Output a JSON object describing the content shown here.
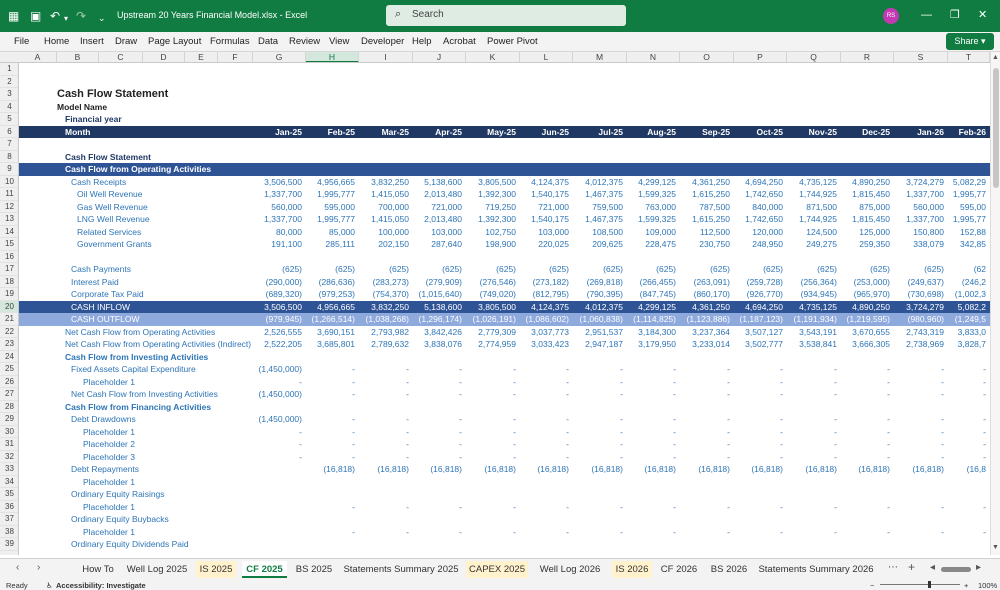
{
  "window": {
    "title": "Upstream 20 Years Financial Model.xlsx  -  Excel",
    "search_placeholder": "Search",
    "avatar_initials": "RS",
    "accent_color": "#107c41"
  },
  "menu": [
    "File",
    "Home",
    "Insert",
    "Draw",
    "Page Layout",
    "Formulas",
    "Data",
    "Review",
    "View",
    "Developer",
    "Help",
    "Acrobat",
    "Power Pivot"
  ],
  "share_label": "Share",
  "columns": [
    "A",
    "B",
    "C",
    "D",
    "E",
    "F",
    "G",
    "H",
    "I",
    "J",
    "K",
    "L",
    "M",
    "N",
    "O",
    "P",
    "Q",
    "R",
    "S",
    "T"
  ],
  "selected_column": "H",
  "sheet": {
    "title": "Cash Flow Statement",
    "subtitle": "Model Name",
    "financial_year_label": "Financial year",
    "month_label": "Month",
    "months": [
      "Jan-25",
      "Feb-25",
      "Mar-25",
      "Apr-25",
      "May-25",
      "Jun-25",
      "Jul-25",
      "Aug-25",
      "Sep-25",
      "Oct-25",
      "Nov-25",
      "Dec-25",
      "Jan-26",
      "Feb-26"
    ],
    "section_label": "Cash Flow Statement",
    "rows": [
      {
        "r": "10",
        "label": "Cash Receipts",
        "indent": 1,
        "style": "blue",
        "vals": [
          "3,506,500",
          "4,956,665",
          "3,832,250",
          "5,138,600",
          "3,805,500",
          "4,124,375",
          "4,012,375",
          "4,299,125",
          "4,361,250",
          "4,694,250",
          "4,735,125",
          "4,890,250",
          "3,724,279",
          "5,082,29"
        ]
      },
      {
        "r": "11",
        "label": "Oil Well Revenue",
        "indent": 2,
        "style": "blue",
        "vals": [
          "1,337,700",
          "1,995,777",
          "1,415,050",
          "2,013,480",
          "1,392,300",
          "1,540,175",
          "1,467,375",
          "1,599,325",
          "1,615,250",
          "1,742,650",
          "1,744,925",
          "1,815,450",
          "1,337,700",
          "1,995,77"
        ]
      },
      {
        "r": "12",
        "label": "Gas Well Revenue",
        "indent": 2,
        "style": "blue",
        "vals": [
          "560,000",
          "595,000",
          "700,000",
          "721,000",
          "719,250",
          "721,000",
          "759,500",
          "763,000",
          "787,500",
          "840,000",
          "871,500",
          "875,000",
          "560,000",
          "595,00"
        ]
      },
      {
        "r": "13",
        "label": "LNG Well Revenue",
        "indent": 2,
        "style": "blue",
        "vals": [
          "1,337,700",
          "1,995,777",
          "1,415,050",
          "2,013,480",
          "1,392,300",
          "1,540,175",
          "1,467,375",
          "1,599,325",
          "1,615,250",
          "1,742,650",
          "1,744,925",
          "1,815,450",
          "1,337,700",
          "1,995,77"
        ]
      },
      {
        "r": "14",
        "label": "Related Services",
        "indent": 2,
        "style": "blue",
        "vals": [
          "80,000",
          "85,000",
          "100,000",
          "103,000",
          "102,750",
          "103,000",
          "108,500",
          "109,000",
          "112,500",
          "120,000",
          "124,500",
          "125,000",
          "150,800",
          "152,88"
        ]
      },
      {
        "r": "15",
        "label": "Government Grants",
        "indent": 2,
        "style": "blue",
        "vals": [
          "191,100",
          "285,111",
          "202,150",
          "287,640",
          "198,900",
          "220,025",
          "209,625",
          "228,475",
          "230,750",
          "248,950",
          "249,275",
          "259,350",
          "338,079",
          "342,85"
        ]
      },
      {
        "r": "16",
        "label": "",
        "indent": 0,
        "style": "",
        "vals": []
      },
      {
        "r": "17",
        "label": "Cash Payments",
        "indent": 1,
        "style": "blue",
        "vals": [
          "(625)",
          "(625)",
          "(625)",
          "(625)",
          "(625)",
          "(625)",
          "(625)",
          "(625)",
          "(625)",
          "(625)",
          "(625)",
          "(625)",
          "(625)",
          "(62"
        ]
      },
      {
        "r": "18",
        "label": "Interest Paid",
        "indent": 1,
        "style": "blue",
        "vals": [
          "(290,000)",
          "(286,636)",
          "(283,273)",
          "(279,909)",
          "(276,546)",
          "(273,182)",
          "(269,818)",
          "(266,455)",
          "(263,091)",
          "(259,728)",
          "(256,364)",
          "(253,000)",
          "(249,637)",
          "(246,2"
        ]
      },
      {
        "r": "19",
        "label": "Corporate Tax Paid",
        "indent": 1,
        "style": "blue",
        "vals": [
          "(689,320)",
          "(979,253)",
          "(754,370)",
          "(1,015,640)",
          "(749,020)",
          "(812,795)",
          "(790,395)",
          "(847,745)",
          "(860,170)",
          "(926,770)",
          "(934,945)",
          "(965,970)",
          "(730,698)",
          "(1,002,3"
        ]
      },
      {
        "r": "20",
        "label": "CASH INFLOW",
        "indent": 1,
        "style": "dark",
        "vals": [
          "3,506,500",
          "4,956,665",
          "3,832,250",
          "5,138,600",
          "3,805,500",
          "4,124,375",
          "4,012,375",
          "4,299,125",
          "4,361,250",
          "4,694,250",
          "4,735,125",
          "4,890,250",
          "3,724,279",
          "5,082,2"
        ]
      },
      {
        "r": "21",
        "label": "CASH OUTFLOW",
        "indent": 1,
        "style": "light",
        "vals": [
          "(979,945)",
          "(1,266,514)",
          "(1,038,268)",
          "(1,296,174)",
          "(1,026,191)",
          "(1,086,602)",
          "(1,060,838)",
          "(1,114,825)",
          "(1,123,886)",
          "(1,187,123)",
          "(1,191,934)",
          "(1,219,595)",
          "(980,960)",
          "(1,249,5"
        ]
      },
      {
        "r": "22",
        "label": "Net Cash Flow from Operating Activities",
        "indent": 0,
        "style": "blue",
        "vals": [
          "2,526,555",
          "3,690,151",
          "2,793,982",
          "3,842,426",
          "2,779,309",
          "3,037,773",
          "2,951,537",
          "3,184,300",
          "3,237,364",
          "3,507,127",
          "3,543,191",
          "3,670,655",
          "2,743,319",
          "3,833,0"
        ]
      },
      {
        "r": "23",
        "label": "Net Cash Flow from Operating Activities (Indirect)",
        "indent": 0,
        "style": "blue",
        "vals": [
          "2,522,205",
          "3,685,801",
          "2,789,632",
          "3,838,076",
          "2,774,959",
          "3,033,423",
          "2,947,187",
          "3,179,950",
          "3,233,014",
          "3,502,777",
          "3,538,841",
          "3,666,305",
          "2,738,969",
          "3,828,7"
        ]
      },
      {
        "r": "24",
        "label": "Cash Flow from Investing Activities",
        "indent": 0,
        "style": "bluebold",
        "vals": []
      },
      {
        "r": "25",
        "label": "Fixed Assets Capital Expenditure",
        "indent": 1,
        "style": "blue",
        "vals": [
          "(1,450,000)",
          "-",
          "-",
          "-",
          "-",
          "-",
          "-",
          "-",
          "-",
          "-",
          "-",
          "-",
          "-",
          "-"
        ]
      },
      {
        "r": "26",
        "label": "Placeholder 1",
        "indent": 3,
        "style": "blue",
        "vals": [
          "-",
          "-",
          "-",
          "-",
          "-",
          "-",
          "-",
          "-",
          "-",
          "-",
          "-",
          "-",
          "-",
          "-"
        ]
      },
      {
        "r": "27",
        "label": "Net Cash Flow from Investing Activities",
        "indent": 1,
        "style": "blue",
        "vals": [
          "(1,450,000)",
          "-",
          "-",
          "-",
          "-",
          "-",
          "-",
          "-",
          "-",
          "-",
          "-",
          "-",
          "-",
          "-"
        ]
      },
      {
        "r": "28",
        "label": "Cash Flow from Financing Activities",
        "indent": 0,
        "style": "bluebold",
        "vals": []
      },
      {
        "r": "29",
        "label": "Debt Drawdowns",
        "indent": 1,
        "style": "blue",
        "vals": [
          "(1,450,000)",
          "-",
          "-",
          "-",
          "-",
          "-",
          "-",
          "-",
          "-",
          "-",
          "-",
          "-",
          "-",
          "-"
        ]
      },
      {
        "r": "30",
        "label": "Placeholder 1",
        "indent": 3,
        "style": "blue",
        "vals": [
          "-",
          "-",
          "-",
          "-",
          "-",
          "-",
          "-",
          "-",
          "-",
          "-",
          "-",
          "-",
          "-",
          "-"
        ]
      },
      {
        "r": "31",
        "label": "Placeholder 2",
        "indent": 3,
        "style": "blue",
        "vals": [
          "-",
          "-",
          "-",
          "-",
          "-",
          "-",
          "-",
          "-",
          "-",
          "-",
          "-",
          "-",
          "-",
          "-"
        ]
      },
      {
        "r": "32",
        "label": "Placeholder 3",
        "indent": 3,
        "style": "blue",
        "vals": [
          "-",
          "-",
          "-",
          "-",
          "-",
          "-",
          "-",
          "-",
          "-",
          "-",
          "-",
          "-",
          "-",
          "-"
        ]
      },
      {
        "r": "33",
        "label": "Debt Repayments",
        "indent": 1,
        "style": "blue",
        "vals": [
          "",
          "(16,818)",
          "(16,818)",
          "(16,818)",
          "(16,818)",
          "(16,818)",
          "(16,818)",
          "(16,818)",
          "(16,818)",
          "(16,818)",
          "(16,818)",
          "(16,818)",
          "(16,818)",
          "(16,8"
        ]
      },
      {
        "r": "34",
        "label": "Placeholder 1",
        "indent": 3,
        "style": "blue",
        "vals": []
      },
      {
        "r": "35",
        "label": "Ordinary Equity Raisings",
        "indent": 1,
        "style": "blue",
        "vals": []
      },
      {
        "r": "36",
        "label": "Placeholder 1",
        "indent": 3,
        "style": "blue",
        "vals": [
          "",
          "-",
          "-",
          "-",
          "-",
          "-",
          "-",
          "-",
          "-",
          "-",
          "-",
          "-",
          "-",
          "-"
        ]
      },
      {
        "r": "37",
        "label": "Ordinary Equity Buybacks",
        "indent": 1,
        "style": "blue",
        "vals": []
      },
      {
        "r": "38",
        "label": "Placeholder 1",
        "indent": 3,
        "style": "blue",
        "vals": [
          "",
          "-",
          "-",
          "-",
          "-",
          "-",
          "-",
          "-",
          "-",
          "-",
          "-",
          "-",
          "-",
          "-"
        ]
      },
      {
        "r": "39",
        "label": "Ordinary Equity Dividends Paid",
        "indent": 1,
        "style": "blue",
        "vals": []
      }
    ]
  },
  "tabs": [
    {
      "label": "How To",
      "kind": ""
    },
    {
      "label": "Well Log 2025",
      "kind": ""
    },
    {
      "label": "IS 2025",
      "kind": "yellow"
    },
    {
      "label": "CF 2025",
      "kind": "active"
    },
    {
      "label": "BS 2025",
      "kind": ""
    },
    {
      "label": "Statements Summary 2025",
      "kind": ""
    },
    {
      "label": "CAPEX 2025",
      "kind": "yellow"
    },
    {
      "label": "Well Log 2026",
      "kind": ""
    },
    {
      "label": "IS 2026",
      "kind": "yellow"
    },
    {
      "label": "CF 2026",
      "kind": ""
    },
    {
      "label": "BS 2026",
      "kind": ""
    },
    {
      "label": "Statements Summary 2026",
      "kind": ""
    }
  ],
  "status": {
    "ready": "Ready",
    "accessibility": "Accessibility: Investigate",
    "zoom": "100%"
  }
}
